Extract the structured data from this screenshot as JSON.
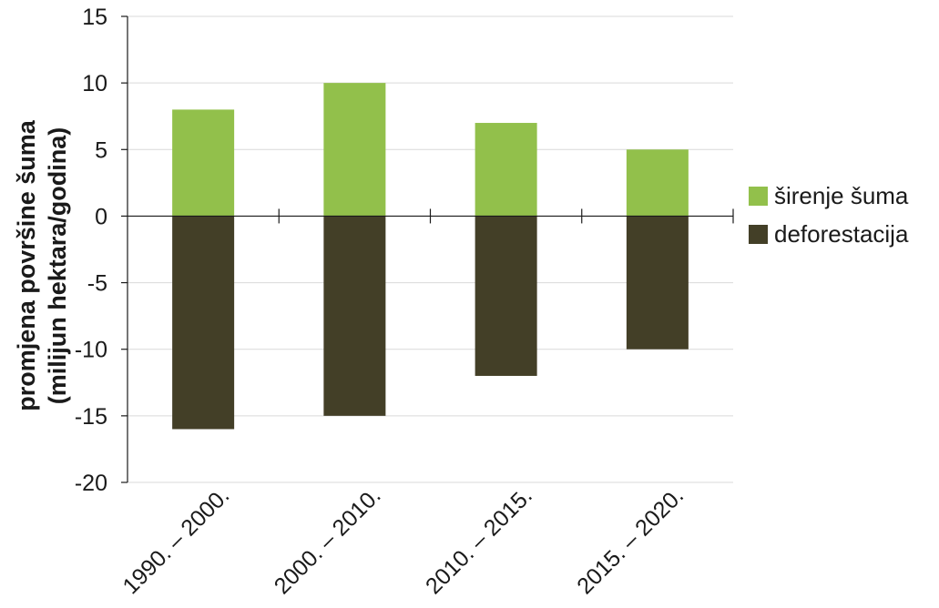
{
  "chart_data": {
    "type": "bar",
    "stacked": true,
    "title": "",
    "xlabel": "",
    "ylabel": [
      "promjena površine šuma",
      "(milijun hektara/godina)"
    ],
    "categories": [
      "1990. – 2000.",
      "2000. – 2010.",
      "2010. – 2015.",
      "2015. – 2020."
    ],
    "series": [
      {
        "name": "širenje šuma",
        "values": [
          8,
          10,
          7,
          5
        ],
        "color": "#92c04b"
      },
      {
        "name": "deforestacija",
        "values": [
          -16,
          -15,
          -12,
          -10
        ],
        "color": "#433f27"
      }
    ],
    "ylim": [
      -20,
      15
    ],
    "yticks": [
      15,
      10,
      5,
      0,
      -5,
      -10,
      -15,
      -20
    ],
    "grid": true,
    "legend": "right"
  }
}
